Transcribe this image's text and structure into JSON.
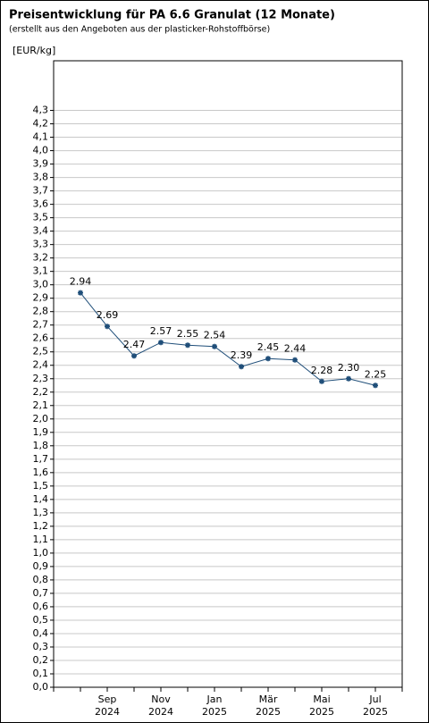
{
  "chart_data": {
    "type": "line",
    "title": "Preisentwicklung für PA 6.6 Granulat (12 Monate)",
    "subtitle": "(erstellt aus den Angeboten aus der plasticker-Rohstoffbörse)",
    "y_label": "[EUR/kg]",
    "categories": [
      null,
      "Sep 2024",
      null,
      "Nov 2024",
      null,
      "Jan 2025",
      null,
      "Mär 2025",
      null,
      "Mai 2025",
      null,
      "Jul 2025"
    ],
    "series": [
      {
        "color": "#1f4e79",
        "values": [
          2.94,
          2.69,
          2.47,
          2.57,
          2.55,
          2.54,
          2.39,
          2.45,
          2.44,
          2.28,
          2.3,
          2.25
        ],
        "value_labels": [
          "2.94",
          "2.69",
          "2.47",
          "2.57",
          "2.55",
          "2.54",
          "2.39",
          "2.45",
          "2.44",
          "2.28",
          "2.30",
          "2.25"
        ]
      }
    ],
    "ylim": [
      0,
      4.67
    ],
    "yticks": [
      {
        "value": 0,
        "label": "0,0"
      },
      {
        "value": 0.1,
        "label": "0,1"
      },
      {
        "value": 0.2,
        "label": "0,2"
      },
      {
        "value": 0.3,
        "label": "0,3"
      },
      {
        "value": 0.4,
        "label": "0,4"
      },
      {
        "value": 0.5,
        "label": "0,5"
      },
      {
        "value": 0.6,
        "label": "0,6"
      },
      {
        "value": 0.7,
        "label": "0,7"
      },
      {
        "value": 0.8,
        "label": "0,8"
      },
      {
        "value": 0.9,
        "label": "0,9"
      },
      {
        "value": 1.0,
        "label": "1,0"
      },
      {
        "value": 1.1,
        "label": "1,1"
      },
      {
        "value": 1.2,
        "label": "1,2"
      },
      {
        "value": 1.3,
        "label": "1,3"
      },
      {
        "value": 1.4,
        "label": "1,4"
      },
      {
        "value": 1.5,
        "label": "1,5"
      },
      {
        "value": 1.6,
        "label": "1,6"
      },
      {
        "value": 1.7,
        "label": "1,7"
      },
      {
        "value": 1.8,
        "label": "1,8"
      },
      {
        "value": 1.9,
        "label": "1,9"
      },
      {
        "value": 2.0,
        "label": "2,0"
      },
      {
        "value": 2.1,
        "label": "2,1"
      },
      {
        "value": 2.2,
        "label": "2,2"
      },
      {
        "value": 2.3,
        "label": "2,3"
      },
      {
        "value": 2.4,
        "label": "2,4"
      },
      {
        "value": 2.5,
        "label": "2,5"
      },
      {
        "value": 2.6,
        "label": "2,6"
      },
      {
        "value": 2.7,
        "label": "2,7"
      },
      {
        "value": 2.8,
        "label": "2,8"
      },
      {
        "value": 2.9,
        "label": "2,9"
      },
      {
        "value": 3.0,
        "label": "3,0"
      },
      {
        "value": 3.1,
        "label": "3,1"
      },
      {
        "value": 3.2,
        "label": "3,2"
      },
      {
        "value": 3.3,
        "label": "3,3"
      },
      {
        "value": 3.4,
        "label": "3,4"
      },
      {
        "value": 3.5,
        "label": "3,5"
      },
      {
        "value": 3.6,
        "label": "3,6"
      },
      {
        "value": 3.7,
        "label": "3,7"
      },
      {
        "value": 3.8,
        "label": "3,8"
      },
      {
        "value": 3.9,
        "label": "3,9"
      },
      {
        "value": 4.0,
        "label": "4,0"
      },
      {
        "value": 4.1,
        "label": "4,1"
      },
      {
        "value": 4.2,
        "label": "4,2"
      },
      {
        "value": 4.3,
        "label": "4,3"
      }
    ],
    "grid": true
  }
}
